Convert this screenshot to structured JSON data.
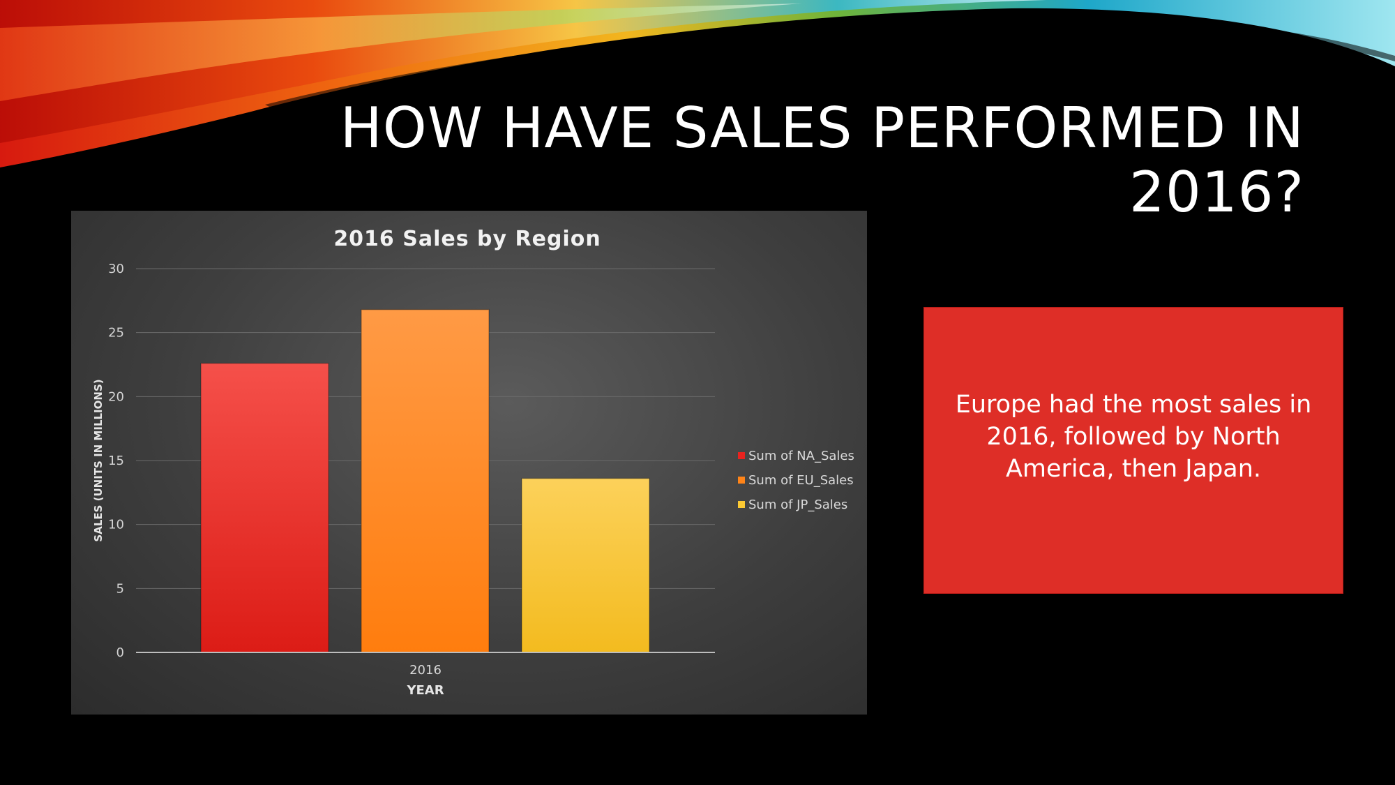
{
  "slide": {
    "title": "HOW HAVE SALES PERFORMED IN 2016?",
    "callout": "Europe had the most sales in 2016, followed by North America, then Japan."
  },
  "colors": {
    "background": "#000000",
    "panel": "#3e3e3e",
    "callout": "#de2e27",
    "na": "#e8231f",
    "eu": "#ff8418",
    "jp": "#fbc933"
  },
  "chart_data": {
    "type": "bar",
    "title": "2016 Sales by Region",
    "xlabel": "YEAR",
    "ylabel": "SALES (UNITS IN MILLIONS)",
    "categories": [
      "2016"
    ],
    "ylim": [
      0,
      30
    ],
    "yticks": [
      0,
      5,
      10,
      15,
      20,
      25,
      30
    ],
    "grid": true,
    "legend_position": "right",
    "series": [
      {
        "name": "Sum of NA_Sales",
        "values": [
          22.6
        ],
        "color": "#e8231f"
      },
      {
        "name": "Sum of EU_Sales",
        "values": [
          26.8
        ],
        "color": "#ff8418"
      },
      {
        "name": "Sum of JP_Sales",
        "values": [
          13.6
        ],
        "color": "#fbc933"
      }
    ]
  }
}
